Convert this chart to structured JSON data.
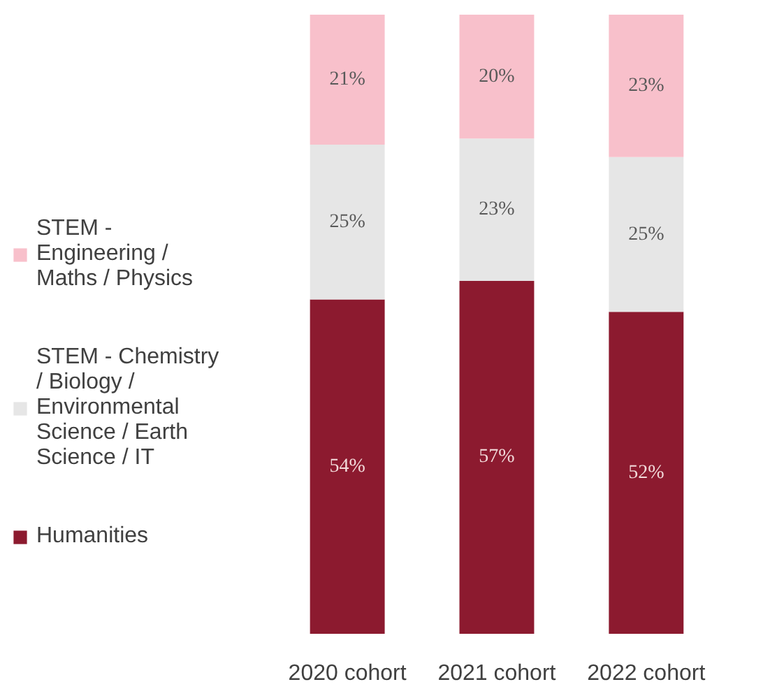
{
  "chart_data": {
    "type": "bar",
    "stacked": true,
    "categories": [
      "2020 cohort",
      "2021 cohort",
      "2022 cohort"
    ],
    "series": [
      {
        "name": "Humanities",
        "color": "#8c1a2f",
        "values": [
          54,
          57,
          52
        ],
        "value_labels": [
          "54%",
          "57%",
          "52%"
        ]
      },
      {
        "name": "STEM - Chemistry / Biology / Environmental Science / Earth Science / IT",
        "color": "#e6e6e6",
        "values": [
          25,
          23,
          25
        ],
        "value_labels": [
          "25%",
          "23%",
          "25%"
        ]
      },
      {
        "name": "STEM - Engineering / Maths / Physics",
        "color": "#f8c0cb",
        "values": [
          21,
          20,
          23
        ],
        "value_labels": [
          "21%",
          "20%",
          "23%"
        ]
      }
    ],
    "legend": "left",
    "grid": false
  }
}
